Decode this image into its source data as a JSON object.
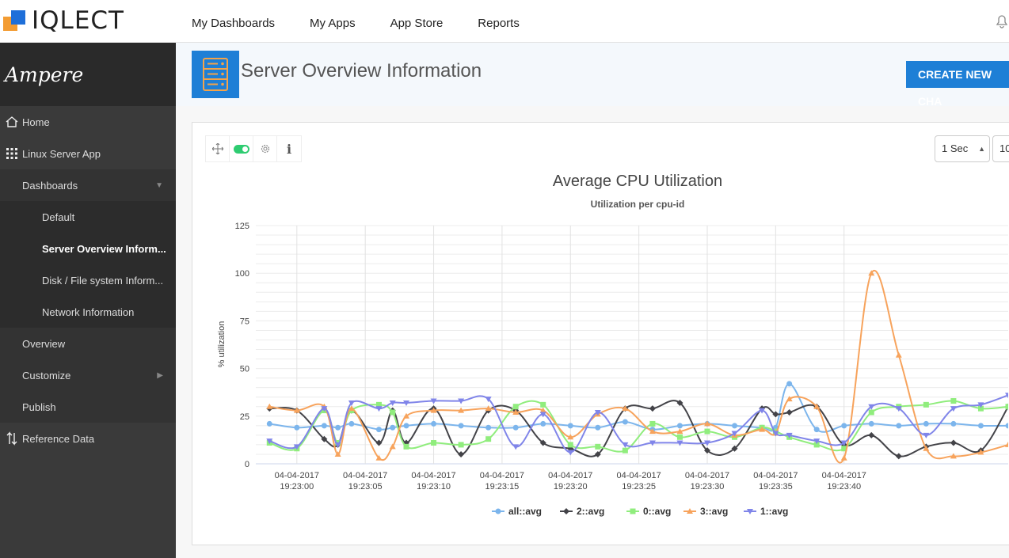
{
  "app": {
    "logo_text": "IQLECT"
  },
  "nav": {
    "items": [
      "My Dashboards",
      "My Apps",
      "App Store",
      "Reports"
    ]
  },
  "sidebar": {
    "brand": "Ampere",
    "home": "Home",
    "linux_app": "Linux Server App",
    "dashboards": "Dashboards",
    "dash_items": [
      "Default",
      "Server Overview Inform...",
      "Disk / File system Inform...",
      "Network Information"
    ],
    "overview": "Overview",
    "customize": "Customize",
    "publish": "Publish",
    "reference": "Reference Data"
  },
  "header": {
    "title": "Server Overview Information",
    "create_button": "CREATE NEW CHA"
  },
  "controls": {
    "interval": "1 Sec",
    "count": "10"
  },
  "chart_data": {
    "type": "line",
    "title": "Average CPU Utilization",
    "subtitle": "Utilization per cpu-id",
    "ylabel": "% utilization",
    "xlabel": "",
    "ylim": [
      0,
      125
    ],
    "yticks": [
      0,
      25,
      50,
      75,
      100,
      125
    ],
    "x_start": 18.5,
    "x_end": 46,
    "xtick_values": [
      20,
      25,
      30,
      35,
      40,
      45,
      50,
      55,
      60
    ],
    "xticks": [
      [
        "04-04-2017",
        "19:23:00"
      ],
      [
        "04-04-2017",
        "19:23:05"
      ],
      [
        "04-04-2017",
        "19:23:10"
      ],
      [
        "04-04-2017",
        "19:23:15"
      ],
      [
        "04-04-2017",
        "19:23:20"
      ],
      [
        "04-04-2017",
        "19:23:25"
      ],
      [
        "04-04-2017",
        "19:23:30"
      ],
      [
        "04-04-2017",
        "19:23:35"
      ],
      [
        "04-04-2017",
        "19:23:40"
      ]
    ],
    "legend_position": "bottom",
    "series": [
      {
        "name": "all::avg",
        "color": "#7cb5ec",
        "marker": "circle",
        "x": [
          19,
          20,
          21,
          21.5,
          22,
          23,
          23.5,
          24,
          25,
          26,
          27,
          28,
          29,
          30,
          31,
          32,
          33,
          34,
          35,
          36,
          37,
          37.5,
          38,
          39,
          40,
          41,
          42,
          43,
          44,
          45,
          46
        ],
        "values": [
          21,
          19,
          20,
          19,
          21,
          18,
          19,
          20,
          21,
          20,
          19,
          19,
          21,
          20,
          19,
          22,
          18,
          20,
          21,
          20,
          19,
          19,
          42,
          18,
          20,
          21,
          20,
          21,
          21,
          20,
          20
        ]
      },
      {
        "name": "2::avg",
        "color": "#434348",
        "marker": "diamond",
        "x": [
          19,
          20,
          21,
          21.5,
          22,
          23,
          23.5,
          24,
          25,
          26,
          27,
          28,
          29,
          30,
          31,
          32,
          33,
          34,
          35,
          36,
          37,
          37.5,
          38,
          39,
          40,
          41,
          42,
          43,
          44,
          45,
          46
        ],
        "values": [
          29,
          28,
          13,
          10,
          28,
          11,
          28,
          11,
          29,
          5,
          28,
          28,
          11,
          8,
          5,
          29,
          29,
          32,
          7,
          8,
          29,
          26,
          27,
          30,
          10,
          15,
          4,
          9,
          11,
          7,
          30
        ]
      },
      {
        "name": "0::avg",
        "color": "#90ed7d",
        "marker": "square",
        "x": [
          19,
          20,
          21,
          21.5,
          22,
          23,
          23.5,
          24,
          25,
          26,
          27,
          28,
          29,
          30,
          31,
          32,
          33,
          34,
          35,
          36,
          37,
          37.5,
          38,
          39,
          40,
          41,
          42,
          43,
          44,
          45,
          46
        ],
        "values": [
          11,
          8,
          28,
          11,
          28,
          31,
          27,
          9,
          11,
          10,
          13,
          30,
          31,
          10,
          9,
          7,
          21,
          14,
          17,
          14,
          19,
          17,
          14,
          10,
          8,
          27,
          30,
          31,
          33,
          29,
          30
        ]
      },
      {
        "name": "3::avg",
        "color": "#f7a35c",
        "marker": "triangle",
        "x": [
          19,
          20,
          21,
          21.5,
          22,
          23,
          23.5,
          24,
          25,
          26,
          27,
          28,
          29,
          30,
          31,
          32,
          33,
          34,
          35,
          36,
          37,
          37.5,
          38,
          39,
          40,
          41,
          42,
          43,
          44,
          45,
          46
        ],
        "values": [
          30,
          28,
          30,
          5,
          29,
          3,
          9,
          25,
          28,
          28,
          29,
          27,
          28,
          14,
          26,
          29,
          17,
          17,
          21,
          15,
          18,
          16,
          34,
          30,
          3,
          100,
          57,
          8,
          4,
          6,
          10
        ]
      },
      {
        "name": "1::avg",
        "color": "#8085e9",
        "marker": "triangle-down",
        "x": [
          19,
          20,
          21,
          21.5,
          22,
          23,
          23.5,
          24,
          25,
          26,
          27,
          28,
          29,
          30,
          31,
          32,
          33,
          34,
          35,
          36,
          37,
          37.5,
          38,
          39,
          40,
          41,
          42,
          43,
          44,
          45,
          46
        ],
        "values": [
          12,
          9,
          29,
          10,
          32,
          29,
          32,
          32,
          33,
          33,
          34,
          9,
          26,
          6,
          27,
          10,
          11,
          11,
          11,
          16,
          28,
          16,
          15,
          12,
          11,
          30,
          29,
          15,
          29,
          31,
          36
        ]
      }
    ]
  }
}
